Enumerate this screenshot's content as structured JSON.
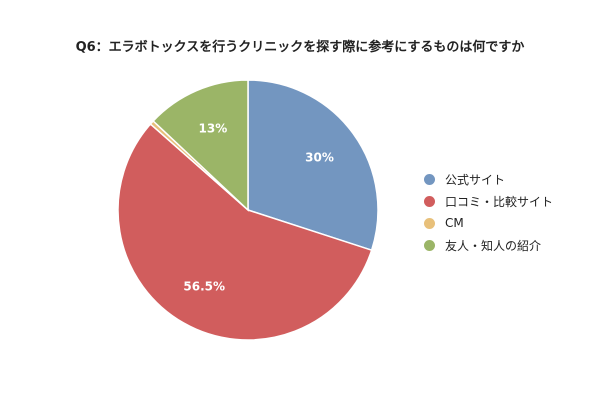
{
  "chart_data": {
    "type": "pie",
    "title": "Q6：エラボトックスを行うクリニックを探す際に参考にするものは何ですか",
    "categories": [
      "公式サイト",
      "口コミ・比較サイト",
      "CM",
      "友人・知人の紹介"
    ],
    "values": [
      30,
      56.5,
      0.5,
      13
    ],
    "data_labels": [
      "30%",
      "56.5%",
      "",
      "13%"
    ],
    "colors": [
      "#7396c0",
      "#d15d5d",
      "#e8c07a",
      "#9bb567"
    ],
    "legend_position": "right"
  }
}
